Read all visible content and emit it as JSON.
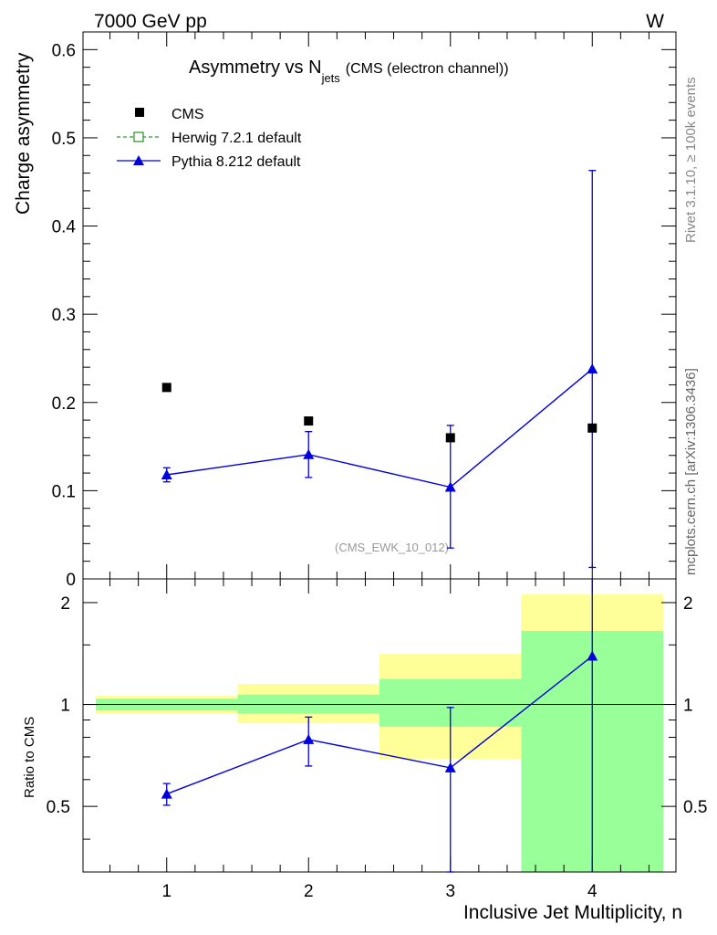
{
  "header": {
    "energy_label": "7000 GeV pp",
    "process_label": "W",
    "title_main": "Asymmetry vs N",
    "title_sub": "jets",
    "title_paren": "(CMS (electron channel))",
    "side_label_top": "Rivet 3.1.10, ≥ 100k events",
    "side_label_bottom": "mcplots.cern.ch [arXiv:1306.3436]",
    "analysis_label": "(CMS_EWK_10_012)"
  },
  "colors": {
    "data": "#000000",
    "herwig": "#339933",
    "pythia": "#0000dd",
    "band_outer": "#ffff99",
    "band_inner": "#99ff99"
  },
  "chart_data": [
    {
      "type": "scatter",
      "panel": "main",
      "ylabel": "Charge asymmetry",
      "xlabel": "",
      "xlim": [
        0.41,
        4.59
      ],
      "ylim": [
        0,
        0.62
      ],
      "y_ticks": [
        0,
        0.1,
        0.2,
        0.3,
        0.4,
        0.5,
        0.6
      ],
      "y_tick_labels": [
        "0",
        "0.1",
        "0.2",
        "0.3",
        "0.4",
        "0.5",
        "0.6"
      ],
      "x_ticks": [
        1,
        2,
        3,
        4
      ],
      "legend": {
        "position": "top-left",
        "entries": [
          "CMS",
          "Herwig 7.2.1 default",
          "Pythia 8.212 default"
        ]
      },
      "series": [
        {
          "name": "CMS",
          "marker": "filled-square",
          "x": [
            1,
            2,
            3,
            4
          ],
          "y": [
            0.217,
            0.179,
            0.16,
            0.171
          ]
        },
        {
          "name": "Herwig 7.2.1 default",
          "marker": "open-square",
          "line": "dashed",
          "x": [],
          "y": []
        },
        {
          "name": "Pythia 8.212 default",
          "marker": "filled-triangle",
          "line": "solid",
          "x": [
            1,
            2,
            3,
            4
          ],
          "y": [
            0.118,
            0.141,
            0.104,
            0.238
          ],
          "y_err_low": [
            0.008,
            0.026,
            0.069,
            0.225
          ],
          "y_err_high": [
            0.008,
            0.026,
            0.07,
            0.225
          ]
        }
      ]
    },
    {
      "type": "line",
      "panel": "ratio",
      "ylabel": "Ratio to CMS",
      "xlabel": "Inclusive Jet Multiplicity, n",
      "xlim": [
        0.41,
        4.59
      ],
      "ylim": [
        0.32,
        2.35
      ],
      "log_y": true,
      "y_ticks": [
        0.5,
        1,
        2
      ],
      "y_tick_labels": [
        "0.5",
        "1",
        "2"
      ],
      "x_ticks": [
        1,
        2,
        3,
        4
      ],
      "x_tick_labels": [
        "1",
        "2",
        "3",
        "4"
      ],
      "bands": [
        {
          "x": [
            0.5,
            1.5
          ],
          "outer": [
            0.94,
            1.06
          ],
          "inner": [
            0.96,
            1.04
          ]
        },
        {
          "x": [
            1.5,
            2.5
          ],
          "outer": [
            0.88,
            1.15
          ],
          "inner": [
            0.94,
            1.07
          ]
        },
        {
          "x": [
            2.5,
            3.5
          ],
          "outer": [
            0.69,
            1.41
          ],
          "inner": [
            0.86,
            1.19
          ]
        },
        {
          "x": [
            3.5,
            4.5
          ],
          "outer": [
            0.32,
            2.12
          ],
          "inner": [
            0.32,
            1.65
          ]
        }
      ],
      "reference_line": 1,
      "series": [
        {
          "name": "Pythia 8.212 default",
          "x": [
            1,
            2,
            3,
            4
          ],
          "y": [
            0.544,
            0.788,
            0.65,
            1.39
          ],
          "y_err_low": [
            0.04,
            0.13,
            0.33,
            1.07
          ],
          "y_err_high": [
            0.04,
            0.13,
            0.33,
            1.07
          ]
        }
      ]
    }
  ]
}
